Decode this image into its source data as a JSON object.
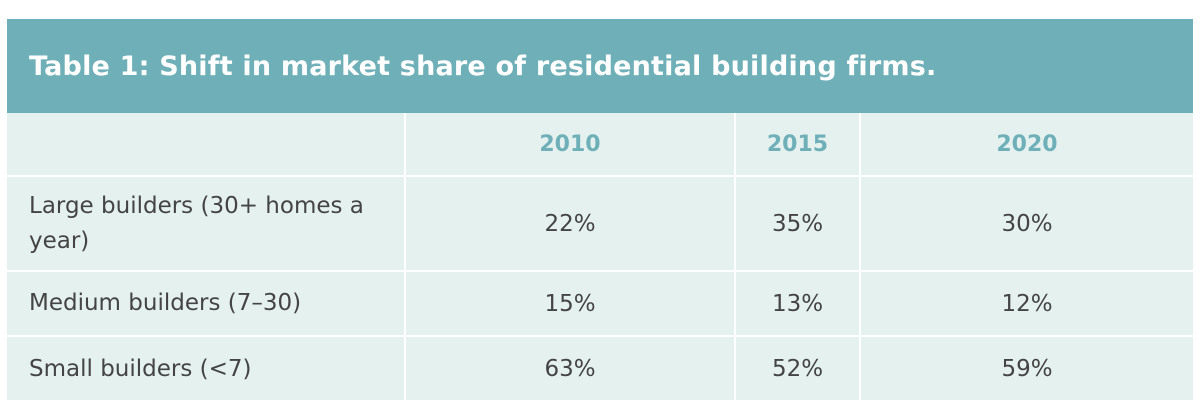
{
  "chart_data": {
    "type": "table",
    "title": "Table 1: Shift in market share of residential building firms.",
    "columns": [
      "",
      "2010",
      "2015",
      "2020"
    ],
    "rows": [
      {
        "label": "Large builders (30+ homes a year)",
        "values": [
          "22%",
          "35%",
          "30%"
        ]
      },
      {
        "label": "Medium builders (7–30)",
        "values": [
          "15%",
          "13%",
          "12%"
        ]
      },
      {
        "label": "Small builders (<7)",
        "values": [
          "63%",
          "52%",
          "59%"
        ]
      }
    ],
    "colors": {
      "header_band": "#6fb0b8",
      "body_background": "#e5f1ef",
      "year_text": "#6fb0b8",
      "body_text": "#444444"
    }
  }
}
